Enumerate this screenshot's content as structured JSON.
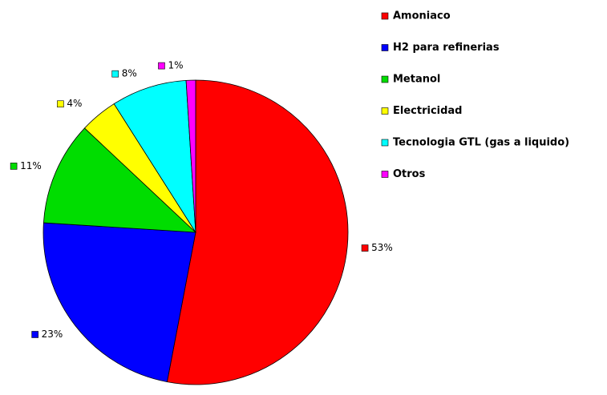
{
  "chart_data": {
    "type": "pie",
    "categories": [
      "Amoniaco",
      "H2 para refinerias",
      "Metanol",
      "Electricidad",
      "Tecnologia GTL (gas a liquido)",
      "Otros"
    ],
    "values": [
      53,
      23,
      11,
      4,
      8,
      1
    ],
    "value_labels": [
      "53%",
      "23%",
      "11%",
      "4%",
      "8%",
      "1%"
    ],
    "colors": [
      "#ff0000",
      "#0000ff",
      "#00dd00",
      "#ffff00",
      "#00ffff",
      "#ff00ff"
    ],
    "legend": "right"
  }
}
